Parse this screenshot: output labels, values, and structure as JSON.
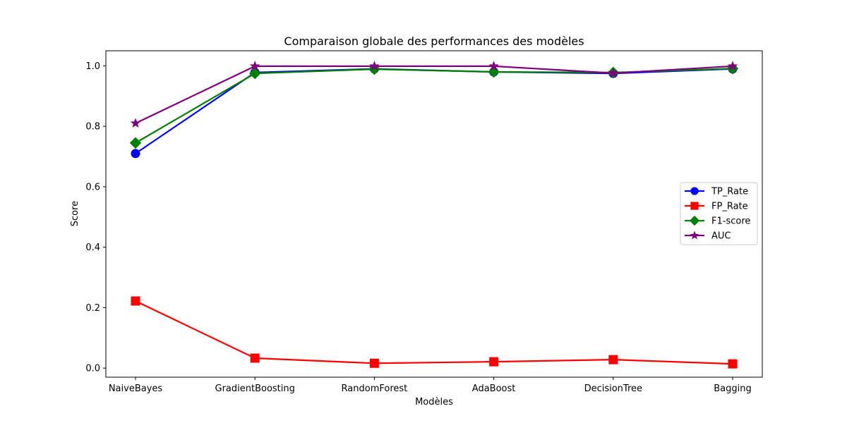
{
  "chart_data": {
    "type": "line",
    "title": "Comparaison globale des performances des modèles",
    "xlabel": "Modèles",
    "ylabel": "Score",
    "categories": [
      "NaiveBayes",
      "GradientBoosting",
      "RandomForest",
      "AdaBoost",
      "DecisionTree",
      "Bagging"
    ],
    "ylim": [
      -0.03,
      1.05
    ],
    "yticks": [
      0.0,
      0.2,
      0.4,
      0.6,
      0.8,
      1.0
    ],
    "ytick_labels": [
      "0.0",
      "0.2",
      "0.4",
      "0.6",
      "0.8",
      "1.0"
    ],
    "grid": false,
    "legend_position": "center-right",
    "series": [
      {
        "name": "TP_Rate",
        "color": "#0000ff",
        "marker": "circle",
        "values": [
          0.71,
          0.978,
          0.99,
          0.98,
          0.975,
          0.99
        ]
      },
      {
        "name": "FP_Rate",
        "color": "#ff0000",
        "marker": "square",
        "values": [
          0.222,
          0.033,
          0.016,
          0.021,
          0.028,
          0.014
        ]
      },
      {
        "name": "F1-score",
        "color": "#008000",
        "marker": "diamond",
        "values": [
          0.745,
          0.975,
          0.989,
          0.98,
          0.978,
          0.991
        ]
      },
      {
        "name": "AUC",
        "color": "#800080",
        "marker": "star",
        "values": [
          0.81,
          0.999,
          0.999,
          0.999,
          0.976,
          0.999
        ]
      }
    ]
  }
}
